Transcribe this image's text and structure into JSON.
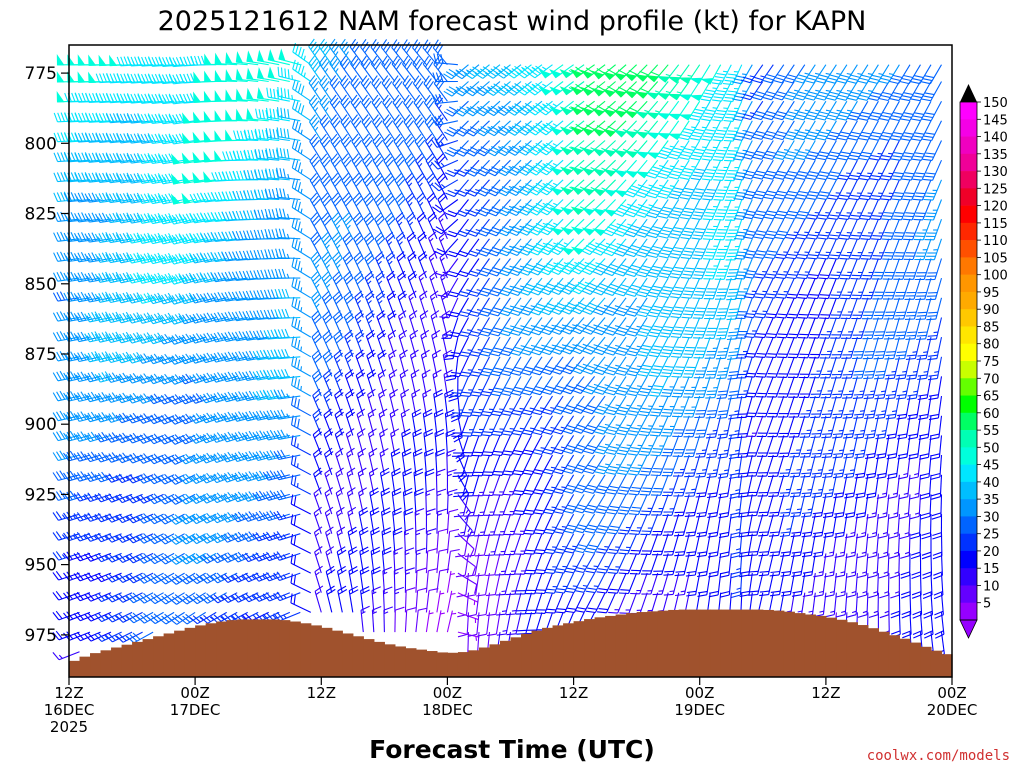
{
  "chart_data": {
    "type": "wind_barb_profile",
    "title": "2025121612 NAM forecast wind profile (kt) for KAPN",
    "xlabel": "Forecast Time (UTC)",
    "ylabel": "",
    "credit": "coolwx.com/models",
    "credit_color": "#d03030",
    "y_axis": {
      "unit": "hPa",
      "range": [
        765,
        990
      ],
      "ticks": [
        775,
        800,
        825,
        850,
        875,
        900,
        925,
        950,
        975
      ]
    },
    "x_axis": {
      "unit": "forecast hours from 2025-12-16 12Z",
      "range": [
        0,
        84
      ],
      "ticks": [
        {
          "hour": 0,
          "line1": "12Z",
          "line2": "16DEC",
          "line3": "2025"
        },
        {
          "hour": 12,
          "line1": "00Z",
          "line2": "17DEC",
          "line3": ""
        },
        {
          "hour": 24,
          "line1": "12Z",
          "line2": "",
          "line3": ""
        },
        {
          "hour": 36,
          "line1": "00Z",
          "line2": "18DEC",
          "line3": ""
        },
        {
          "hour": 48,
          "line1": "12Z",
          "line2": "",
          "line3": ""
        },
        {
          "hour": 60,
          "line1": "00Z",
          "line2": "19DEC",
          "line3": ""
        },
        {
          "hour": 72,
          "line1": "12Z",
          "line2": "",
          "line3": ""
        },
        {
          "hour": 84,
          "line1": "00Z",
          "line2": "20DEC",
          "line3": ""
        }
      ]
    },
    "colorbar": {
      "min": 5,
      "max": 150,
      "step": 5,
      "labels": [
        150,
        145,
        140,
        135,
        130,
        125,
        120,
        115,
        110,
        105,
        100,
        95,
        90,
        85,
        80,
        75,
        70,
        65,
        60,
        55,
        50,
        45,
        40,
        35,
        30,
        25,
        20,
        15,
        10,
        5
      ],
      "colors": [
        "#ff00ff",
        "#f500e6",
        "#f000c0",
        "#f00098",
        "#f00060",
        "#f00028",
        "#ff0000",
        "#ff2800",
        "#ff5000",
        "#ff7800",
        "#ff9600",
        "#ffaa00",
        "#ffc800",
        "#ffe600",
        "#ffff00",
        "#c8ff00",
        "#64ff00",
        "#00ff00",
        "#00ff64",
        "#00ffb4",
        "#00ffdc",
        "#00e6ff",
        "#00beff",
        "#0096ff",
        "#0064ff",
        "#0032ff",
        "#0000ff",
        "#3200ff",
        "#6400ff",
        "#9600ff"
      ]
    },
    "wind_barbs": {
      "time_step_hours": 1,
      "levels_hpa": [
        772,
        778,
        785,
        792,
        799,
        806,
        813,
        820,
        827,
        834,
        841,
        848,
        855,
        862,
        869,
        876,
        883,
        890,
        897,
        904,
        911,
        918,
        925,
        932,
        939,
        946,
        953,
        960,
        967,
        974,
        981
      ],
      "key_frames": [
        {
          "hour": 0,
          "top_dir": 270,
          "top_spd": 45,
          "bot_dir": 250,
          "bot_spd": 20
        },
        {
          "hour": 12,
          "top_dir": 265,
          "top_spd": 50,
          "bot_dir": 235,
          "bot_spd": 25
        },
        {
          "hour": 22,
          "top_dir": 285,
          "top_spd": 45,
          "bot_dir": 245,
          "bot_spd": 25
        },
        {
          "hour": 24,
          "top_dir": 325,
          "top_spd": 40,
          "bot_dir": 345,
          "bot_spd": 15
        },
        {
          "hour": 36,
          "top_dir": 320,
          "top_spd": 25,
          "bot_dir": 15,
          "bot_spd": 8
        },
        {
          "hour": 38,
          "top_dir": 230,
          "top_spd": 30,
          "bot_dir": 180,
          "bot_spd": 10
        },
        {
          "hour": 50,
          "top_dir": 235,
          "top_spd": 60,
          "bot_dir": 205,
          "bot_spd": 15
        },
        {
          "hour": 64,
          "top_dir": 205,
          "top_spd": 50,
          "bot_dir": 180,
          "bot_spd": 15
        },
        {
          "hour": 66,
          "top_dir": 215,
          "top_spd": 30,
          "bot_dir": 190,
          "bot_spd": 15
        },
        {
          "hour": 84,
          "top_dir": 210,
          "top_spd": 35,
          "bot_dir": 170,
          "bot_spd": 15
        }
      ]
    },
    "terrain": {
      "color": "#a0522d",
      "series": [
        {
          "hour": 0,
          "hpa": 985
        },
        {
          "hour": 2,
          "hpa": 982
        },
        {
          "hour": 4,
          "hpa": 980
        },
        {
          "hour": 6,
          "hpa": 978
        },
        {
          "hour": 8,
          "hpa": 976
        },
        {
          "hour": 10,
          "hpa": 974
        },
        {
          "hour": 12,
          "hpa": 972
        },
        {
          "hour": 14,
          "hpa": 970.5
        },
        {
          "hour": 16,
          "hpa": 969.5
        },
        {
          "hour": 18,
          "hpa": 969.5
        },
        {
          "hour": 20,
          "hpa": 969.5
        },
        {
          "hour": 22,
          "hpa": 970.5
        },
        {
          "hour": 24,
          "hpa": 972
        },
        {
          "hour": 26,
          "hpa": 974
        },
        {
          "hour": 28,
          "hpa": 976
        },
        {
          "hour": 30,
          "hpa": 978
        },
        {
          "hour": 32,
          "hpa": 979.5
        },
        {
          "hour": 34,
          "hpa": 980.5
        },
        {
          "hour": 36,
          "hpa": 981.5
        },
        {
          "hour": 38,
          "hpa": 981
        },
        {
          "hour": 40,
          "hpa": 979
        },
        {
          "hour": 42,
          "hpa": 976.5
        },
        {
          "hour": 44,
          "hpa": 974
        },
        {
          "hour": 46,
          "hpa": 972
        },
        {
          "hour": 48,
          "hpa": 970.5
        },
        {
          "hour": 50,
          "hpa": 969
        },
        {
          "hour": 52,
          "hpa": 968
        },
        {
          "hour": 54,
          "hpa": 967
        },
        {
          "hour": 56,
          "hpa": 966.5
        },
        {
          "hour": 58,
          "hpa": 966
        },
        {
          "hour": 60,
          "hpa": 966
        },
        {
          "hour": 62,
          "hpa": 966
        },
        {
          "hour": 64,
          "hpa": 966
        },
        {
          "hour": 66,
          "hpa": 966
        },
        {
          "hour": 68,
          "hpa": 966.5
        },
        {
          "hour": 70,
          "hpa": 967.5
        },
        {
          "hour": 72,
          "hpa": 968.5
        },
        {
          "hour": 74,
          "hpa": 970
        },
        {
          "hour": 76,
          "hpa": 972
        },
        {
          "hour": 78,
          "hpa": 974.5
        },
        {
          "hour": 80,
          "hpa": 977
        },
        {
          "hour": 82,
          "hpa": 980
        },
        {
          "hour": 84,
          "hpa": 982.5
        }
      ]
    }
  }
}
